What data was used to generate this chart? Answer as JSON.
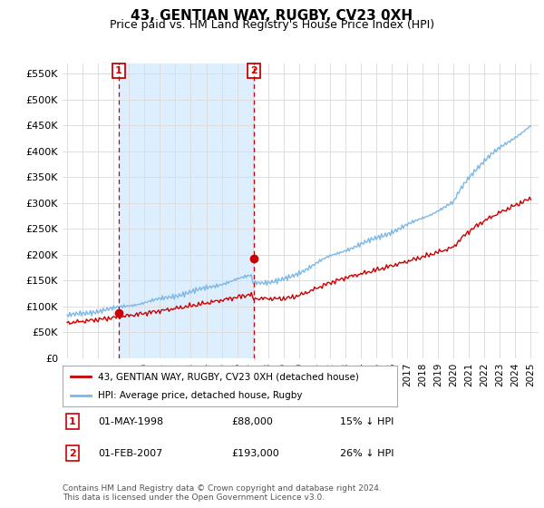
{
  "title": "43, GENTIAN WAY, RUGBY, CV23 0XH",
  "subtitle": "Price paid vs. HM Land Registry's House Price Index (HPI)",
  "ylabel_values": [
    0,
    50000,
    100000,
    150000,
    200000,
    250000,
    300000,
    350000,
    400000,
    450000,
    500000,
    550000
  ],
  "ylim": [
    0,
    570000
  ],
  "xlim_start": 1994.7,
  "xlim_end": 2025.5,
  "hpi_color": "#7ab8e8",
  "price_color": "#cc0000",
  "purchase1_date": 1998.33,
  "purchase1_price": 88000,
  "purchase2_date": 2007.08,
  "purchase2_price": 193000,
  "legend_label_price": "43, GENTIAN WAY, RUGBY, CV23 0XH (detached house)",
  "legend_label_hpi": "HPI: Average price, detached house, Rugby",
  "table_rows": [
    [
      "1",
      "01-MAY-1998",
      "£88,000",
      "15% ↓ HPI"
    ],
    [
      "2",
      "01-FEB-2007",
      "£193,000",
      "26% ↓ HPI"
    ]
  ],
  "footnote": "Contains HM Land Registry data © Crown copyright and database right 2024.\nThis data is licensed under the Open Government Licence v3.0.",
  "bg_color": "#ffffff",
  "grid_color": "#dddddd",
  "vline_color": "#cc0000",
  "shade_color": "#ddeeff"
}
